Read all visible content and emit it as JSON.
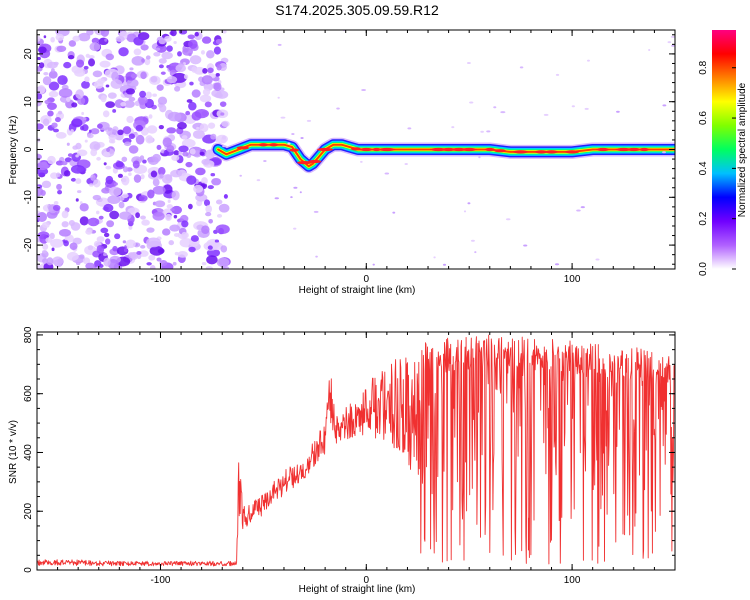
{
  "title": "S174.2025.305.09.59.R12",
  "chart_data": [
    {
      "type": "heatmap",
      "xlabel": "Height of straight line (km)",
      "ylabel": "Frequency (Hz)",
      "xlim": [
        -160,
        150
      ],
      "ylim": [
        -25,
        25
      ],
      "xticks": [
        -100,
        0,
        100
      ],
      "xtick_labels": [
        "-100",
        "0",
        "100"
      ],
      "yticks": [
        -20,
        -10,
        0,
        10,
        20
      ],
      "ytick_labels": [
        "-20",
        "-10",
        "0",
        "10",
        "20"
      ],
      "noise_region_x": [
        -160,
        -72
      ],
      "signal_track": {
        "x": [
          -72,
          -68,
          -62,
          -56,
          -50,
          -44,
          -40,
          -36,
          -32,
          -28,
          -26,
          -24,
          -20,
          -16,
          -12,
          -8,
          -4,
          0,
          10,
          20,
          30,
          40,
          50,
          60,
          70,
          80,
          90,
          100,
          110,
          120,
          130,
          140,
          150
        ],
        "freq": [
          0,
          -1,
          0,
          1,
          1,
          1,
          1,
          0.5,
          -2,
          -3.5,
          -3,
          -2,
          0,
          1,
          1,
          0.5,
          0,
          0,
          0,
          0,
          0,
          0,
          0,
          0,
          -0.5,
          -0.5,
          -0.5,
          -0.5,
          0,
          0,
          0,
          0,
          0
        ]
      },
      "colorbar": {
        "label": "Normalized spectral amplitude",
        "range": [
          0,
          0.95
        ],
        "ticks": [
          0.0,
          0.2,
          0.4,
          0.6,
          0.8
        ],
        "tick_labels": [
          "0.0",
          "0.2",
          "0.4",
          "0.6",
          "0.8"
        ],
        "colors": [
          "#ffffff",
          "#b060ff",
          "#7000ff",
          "#0000ff",
          "#00c0ff",
          "#00ff60",
          "#80ff00",
          "#ffff00",
          "#ff8000",
          "#ff0000",
          "#ff0080"
        ]
      }
    },
    {
      "type": "line",
      "xlabel": "Height of straight line (km)",
      "ylabel": "SNR (10 * v/v)",
      "xlim": [
        -160,
        150
      ],
      "ylim": [
        0,
        810
      ],
      "xticks": [
        -100,
        0,
        100
      ],
      "xtick_labels": [
        "-100",
        "0",
        "100"
      ],
      "yticks": [
        0,
        200,
        400,
        600,
        800
      ],
      "ytick_labels": [
        "0",
        "200",
        "400",
        "600",
        "800"
      ],
      "series": [
        {
          "name": "SNR",
          "color": "#f03030",
          "x": [
            -160,
            -140,
            -120,
            -100,
            -80,
            -63,
            -62,
            -60,
            -55,
            -50,
            -45,
            -40,
            -35,
            -30,
            -25,
            -20,
            -17,
            -15,
            -10,
            -5,
            0,
            5,
            10,
            15,
            20,
            25,
            30,
            40,
            50,
            60,
            70,
            80,
            90,
            100,
            110,
            120,
            130,
            140,
            150
          ],
          "envelope_top": [
            35,
            35,
            30,
            30,
            30,
            30,
            390,
            230,
            240,
            260,
            300,
            340,
            360,
            390,
            450,
            500,
            720,
            520,
            560,
            580,
            620,
            680,
            700,
            720,
            740,
            760,
            780,
            790,
            800,
            800,
            790,
            800,
            790,
            780,
            770,
            760,
            760,
            750,
            740
          ],
          "envelope_bottom": [
            5,
            5,
            5,
            5,
            5,
            5,
            20,
            90,
            120,
            150,
            180,
            210,
            240,
            270,
            300,
            330,
            350,
            360,
            380,
            390,
            350,
            300,
            250,
            200,
            150,
            60,
            20,
            20,
            20,
            20,
            20,
            20,
            20,
            20,
            20,
            20,
            20,
            20,
            20
          ]
        }
      ]
    }
  ]
}
